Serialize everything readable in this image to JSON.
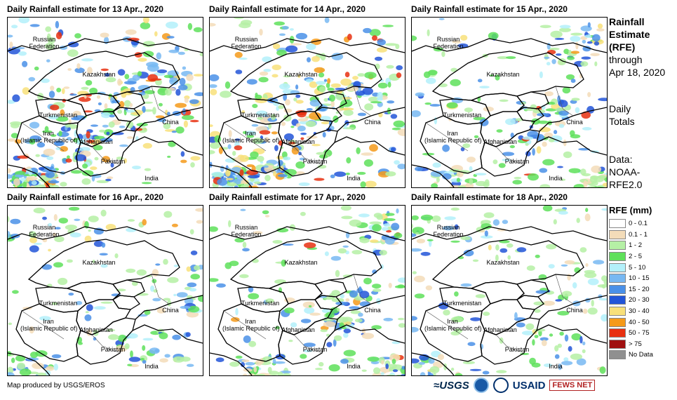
{
  "panels": [
    {
      "title": "Daily Rainfall estimate for 13 Apr., 2020",
      "intensity": "high"
    },
    {
      "title": "Daily Rainfall estimate for 14 Apr., 2020",
      "intensity": "high"
    },
    {
      "title": "Daily Rainfall estimate for 15 Apr., 2020",
      "intensity": "medium"
    },
    {
      "title": "Daily Rainfall estimate for 16 Apr., 2020",
      "intensity": "low"
    },
    {
      "title": "Daily Rainfall estimate for 17 Apr., 2020",
      "intensity": "medium"
    },
    {
      "title": "Daily Rainfall estimate for 18 Apr., 2020",
      "intensity": "low"
    }
  ],
  "map_labels": {
    "russia": "Russian\nFederation",
    "kazakhstan": "Kazakhstan",
    "turkmenistan": "Turkmenistan",
    "china": "China",
    "iran": "Iran\n(Islamic Republic of)",
    "afghanistan": "Afghanistan",
    "pakistan": "Pakistan",
    "india": "India"
  },
  "side": {
    "heading_1": "Rainfall",
    "heading_2": "Estimate",
    "heading_3": "(RFE)",
    "through_1": "through",
    "through_2": "Apr 18, 2020",
    "totals_1": "Daily",
    "totals_2": "Totals",
    "data_1": "Data:",
    "data_2": "NOAA-",
    "data_3": "RFE2.0"
  },
  "legend": {
    "title": "RFE (mm)",
    "items": [
      {
        "label": "0 - 0.1",
        "color": "#ffffff"
      },
      {
        "label": "0.1 - 1",
        "color": "#f3dcb9"
      },
      {
        "label": "1 - 2",
        "color": "#b5f0a5"
      },
      {
        "label": "2 - 5",
        "color": "#5ee05a"
      },
      {
        "label": "5 - 10",
        "color": "#b3f0fa"
      },
      {
        "label": "10 - 15",
        "color": "#78b8f2"
      },
      {
        "label": "15 - 20",
        "color": "#4a90e8"
      },
      {
        "label": "20 - 30",
        "color": "#2255d8"
      },
      {
        "label": "30 - 40",
        "color": "#f8e07a"
      },
      {
        "label": "40 - 50",
        "color": "#f59a1a"
      },
      {
        "label": "50 - 75",
        "color": "#e83010"
      },
      {
        "label": "> 75",
        "color": "#a01010"
      },
      {
        "label": "No Data",
        "color": "#909090"
      }
    ]
  },
  "footer": "Map produced by USGS/EROS",
  "logos": {
    "usgs": "≈USGS",
    "usaid": "USAID",
    "fews": "FEWS NET"
  }
}
